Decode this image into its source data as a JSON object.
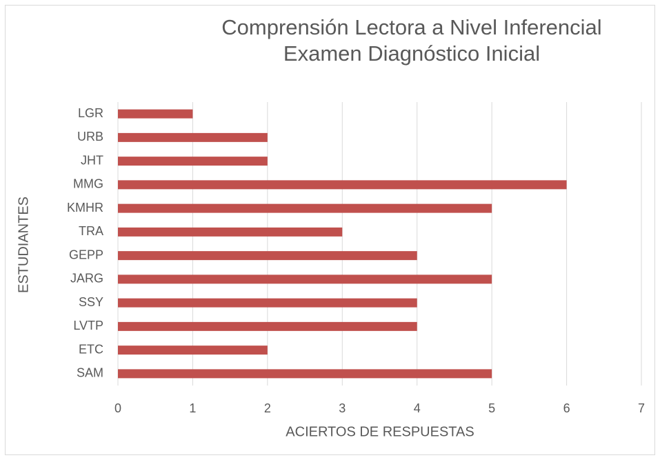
{
  "chart_data": {
    "type": "bar",
    "orientation": "horizontal",
    "title": "Comprensión Lectora a Nivel Inferencial",
    "subtitle": "Examen Diagnóstico Inicial",
    "x_label": "ACIERTOS DE RESPUESTAS",
    "y_label": "ESTUDIANTES",
    "categories": [
      "LGR",
      "URB",
      "JHT",
      "MMG",
      "KMHR",
      "TRA",
      "GEPP",
      "JARG",
      "SSY",
      "LVTP",
      "ETC",
      "SAM"
    ],
    "values": [
      1,
      2,
      2,
      6,
      5,
      3,
      4,
      5,
      4,
      4,
      2,
      5
    ],
    "color": "#c0504d",
    "xlim": [
      0,
      7
    ],
    "xticks": [
      0,
      1,
      2,
      3,
      4,
      5,
      6,
      7
    ],
    "grid": true
  }
}
